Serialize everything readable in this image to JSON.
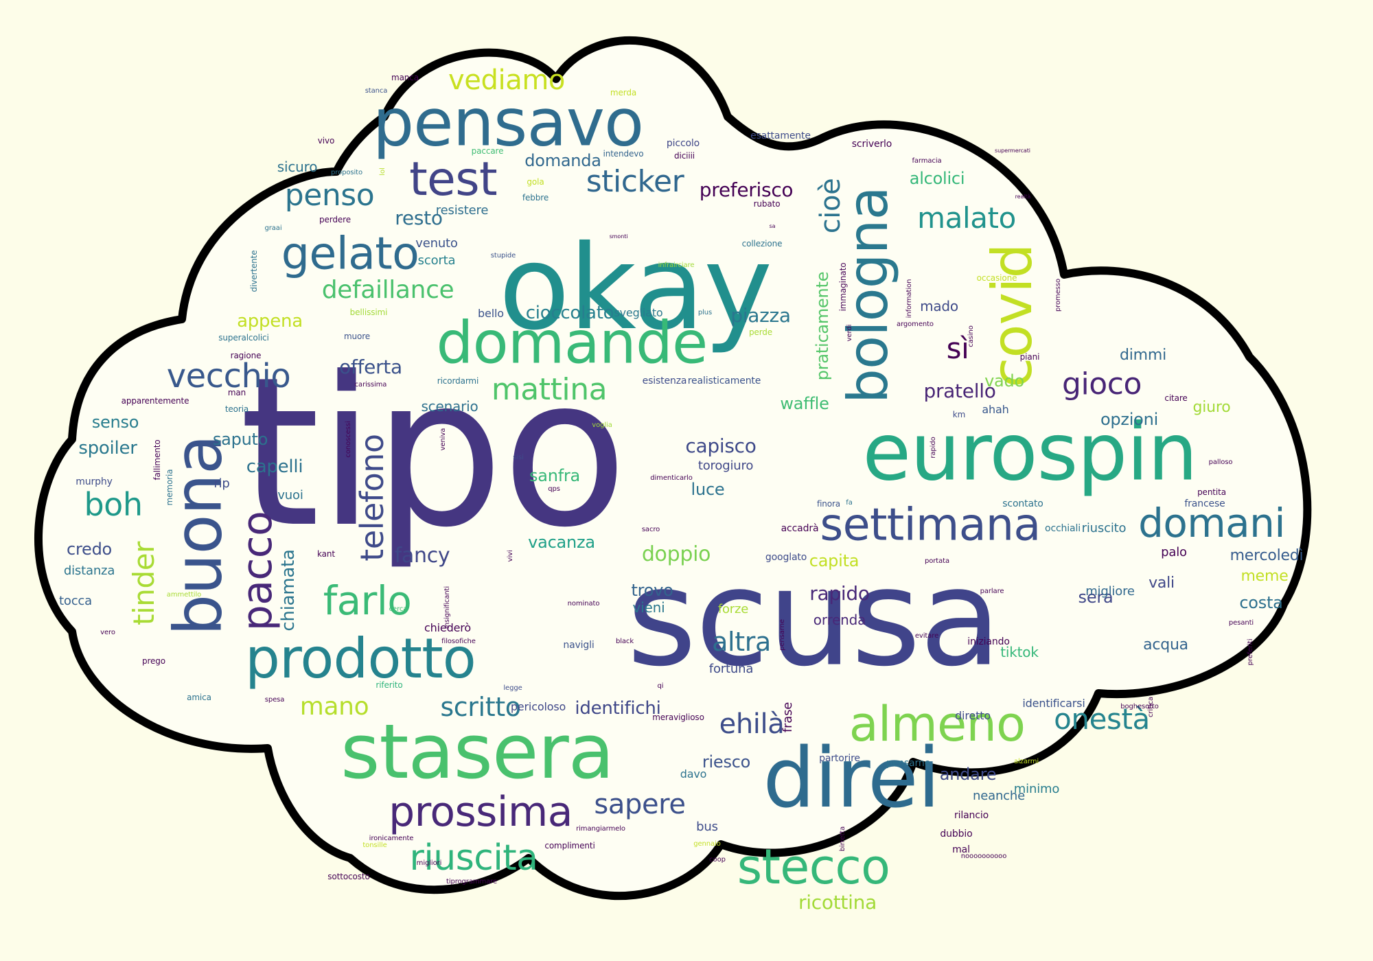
{
  "colors": {
    "background": "#fdfde9",
    "cloud_fill": "#fefef3",
    "cloud_outline": "#000000",
    "palette": [
      "#453681",
      "#3e4c8a",
      "#31688e",
      "#27818e",
      "#1f9a8a",
      "#3fbc73",
      "#6ccd5a",
      "#a0da39",
      "#c8e020"
    ]
  },
  "words": [
    "tipo",
    "scusa",
    "okay",
    "eurospin",
    "direi",
    "stasera",
    "pensavo",
    "domande",
    "buona",
    "bologna",
    "covid",
    "prodotto",
    "almeno",
    "stecco",
    "settimana",
    "prossima",
    "test",
    "gelato",
    "pacco",
    "domani",
    "farlo",
    "riuscita",
    "vecchio",
    "telefono",
    "mattina",
    "gioco",
    "sticker",
    "penso",
    "boh",
    "tinder",
    "malato",
    "cioè",
    "onestà",
    "sapere",
    "vediamo",
    "ehilà",
    "defaillance",
    "sì",
    "scritto",
    "altra",
    "mano",
    "capisco",
    "cioccolato",
    "offerta",
    "ricottina",
    "fancy",
    "doppio",
    "rapido",
    "resto",
    "preferisco",
    "piazza",
    "pratello",
    "domanda",
    "alcolici",
    "opzioni",
    "chiamata",
    "praticamente",
    "identifichi",
    "vado",
    "riesco",
    "spoiler",
    "capelli",
    "appena",
    "credo",
    "senso",
    "vacanza",
    "sanfra",
    "costa",
    "trovo",
    "andare",
    "sera",
    "mercoledì",
    "capita",
    "luce",
    "waffle",
    "torogiuro",
    "dimmi",
    "giuro",
    "riuscito",
    "forze",
    "orrenda",
    "fortuna",
    "chiederò",
    "meme",
    "migliore",
    "tiktok",
    "acqua",
    "mado",
    "vali",
    "minimo",
    "palo",
    "neanche",
    "bus",
    "distanza",
    "tocca",
    "rip",
    "vuoi",
    "saputo",
    "sicuro",
    "venuto",
    "resistere",
    "scorta",
    "bello",
    "svegliato",
    "scenario",
    "esistenza",
    "realisticamente",
    "diretto",
    "identificarsi",
    "partorire",
    "pensarne",
    "frase",
    "ahah",
    "accadrà",
    "finora",
    "scontato",
    "occhiali",
    "francese",
    "murphy",
    "iniziando",
    "pericoloso",
    "meraviglioso",
    "googlato",
    "navigli",
    "rubato",
    "collezione",
    "esattamente",
    "scriverlo",
    "paccare",
    "intendevo",
    "piccolo",
    "diciiii",
    "febbre",
    "gola",
    "merda",
    "manca",
    "vivo",
    "stanca",
    "proposito",
    "lol",
    "perdere",
    "graai",
    "stupide",
    "infrairciare",
    "plus",
    "perde",
    "muore",
    "superalcolici",
    "ragione",
    "carissima",
    "ricordarmi",
    "bellissimi",
    "divertente",
    "apparentemente",
    "fallimento",
    "memoria",
    "kant",
    "ammettilo",
    "vero",
    "prego",
    "amica",
    "spesa",
    "riferito",
    "legge",
    "filosofiche",
    "insignificanti",
    "cerca",
    "conoscessi",
    "veniva",
    "sisi",
    "teoria",
    "man",
    "voglia",
    "dimenticarlo",
    "qps",
    "vivi",
    "sacro",
    "black",
    "qi",
    "nominato",
    "pensarne",
    "km",
    "portata",
    "parlare",
    "evitare",
    "citare",
    "pentita",
    "palloso",
    "preferiti",
    "pesanti",
    "critica",
    "alzarmi",
    "boghesotto",
    "noooooooooo",
    "mal",
    "dubbio",
    "rilancio",
    "complimenti",
    "gennaio",
    "coop",
    "rimangiarmelo",
    "birretta",
    "tonsille",
    "sottocosto",
    "migliori",
    "ironicamente",
    "tiprogrammare",
    "supermercati",
    "realtà",
    "farmacia",
    "sa",
    "smonti",
    "occasione",
    "immaginato",
    "promesso",
    "casino",
    "argomento",
    "information",
    "verdi",
    "piani",
    "rapido",
    "davo",
    "vieni",
    "fa"
  ]
}
